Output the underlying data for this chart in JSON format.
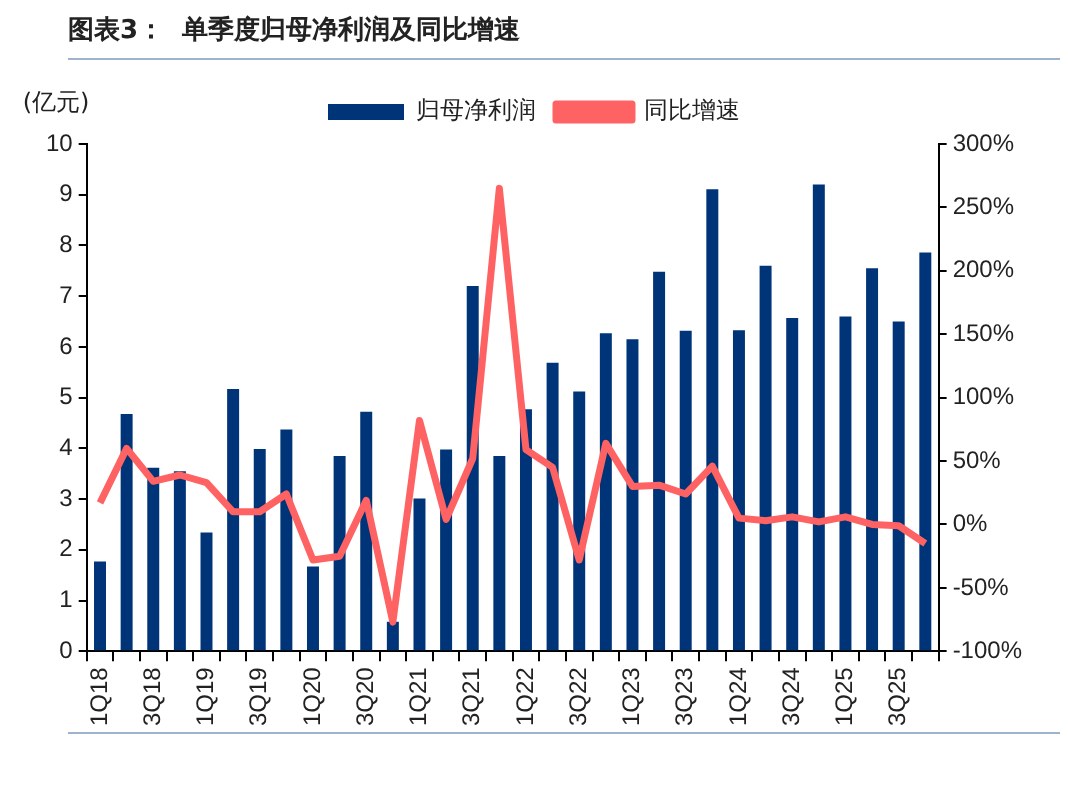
{
  "chart_data": {
    "type": "bar",
    "title": "图表3：  单季度归母净利润及同比增速",
    "ylabel": "(亿元)",
    "categories": [
      "1Q18",
      null,
      "3Q18",
      null,
      "1Q19",
      null,
      "3Q19",
      null,
      "1Q20",
      null,
      "3Q20",
      null,
      "1Q21",
      null,
      "3Q21",
      null,
      "1Q22",
      null,
      "3Q22",
      null,
      "1Q23",
      null,
      "3Q23",
      null,
      "1Q24",
      null,
      "3Q24",
      null,
      "1Q25",
      null,
      "3Q25",
      null
    ],
    "series": [
      {
        "name": "归母净利润",
        "color": "#003478",
        "values": [
          1.77,
          4.68,
          3.62,
          3.55,
          2.34,
          5.17,
          3.99,
          4.37,
          1.67,
          3.85,
          4.72,
          0.58,
          3.01,
          3.98,
          7.2,
          3.85,
          4.77,
          5.69,
          5.12,
          6.27,
          6.15,
          7.48,
          6.32,
          9.11,
          6.33,
          7.6,
          6.57,
          9.2,
          6.6,
          7.55,
          6.5,
          7.86
        ]
      },
      {
        "name": "同比增速",
        "type": "line",
        "axis": "y2",
        "color": "#ff6262",
        "values": [
          17,
          60,
          34,
          39,
          33,
          10,
          10,
          24,
          -28,
          -25,
          19,
          -77,
          82,
          4,
          52,
          265,
          59,
          45,
          -28,
          64,
          30,
          31,
          24,
          46,
          5,
          3,
          6,
          2,
          6,
          0,
          -1,
          -15
        ]
      }
    ],
    "ylim": [
      0,
      10
    ],
    "yticks": [
      0,
      1,
      2,
      3,
      4,
      5,
      6,
      7,
      8,
      9,
      10
    ],
    "y2lim": [
      -100,
      300
    ],
    "y2ticks": [
      {
        "value": -100,
        "label": "-100%"
      },
      {
        "value": -50,
        "label": "-50%"
      },
      {
        "value": 0,
        "label": "0%"
      },
      {
        "value": 50,
        "label": "50%"
      },
      {
        "value": 100,
        "label": "100%"
      },
      {
        "value": 150,
        "label": "150%"
      },
      {
        "value": 200,
        "label": "200%"
      },
      {
        "value": 250,
        "label": "250%"
      },
      {
        "value": 300,
        "label": "300%"
      }
    ],
    "grid": false,
    "legend": "top",
    "marker": "none",
    "line_style": "solid"
  }
}
